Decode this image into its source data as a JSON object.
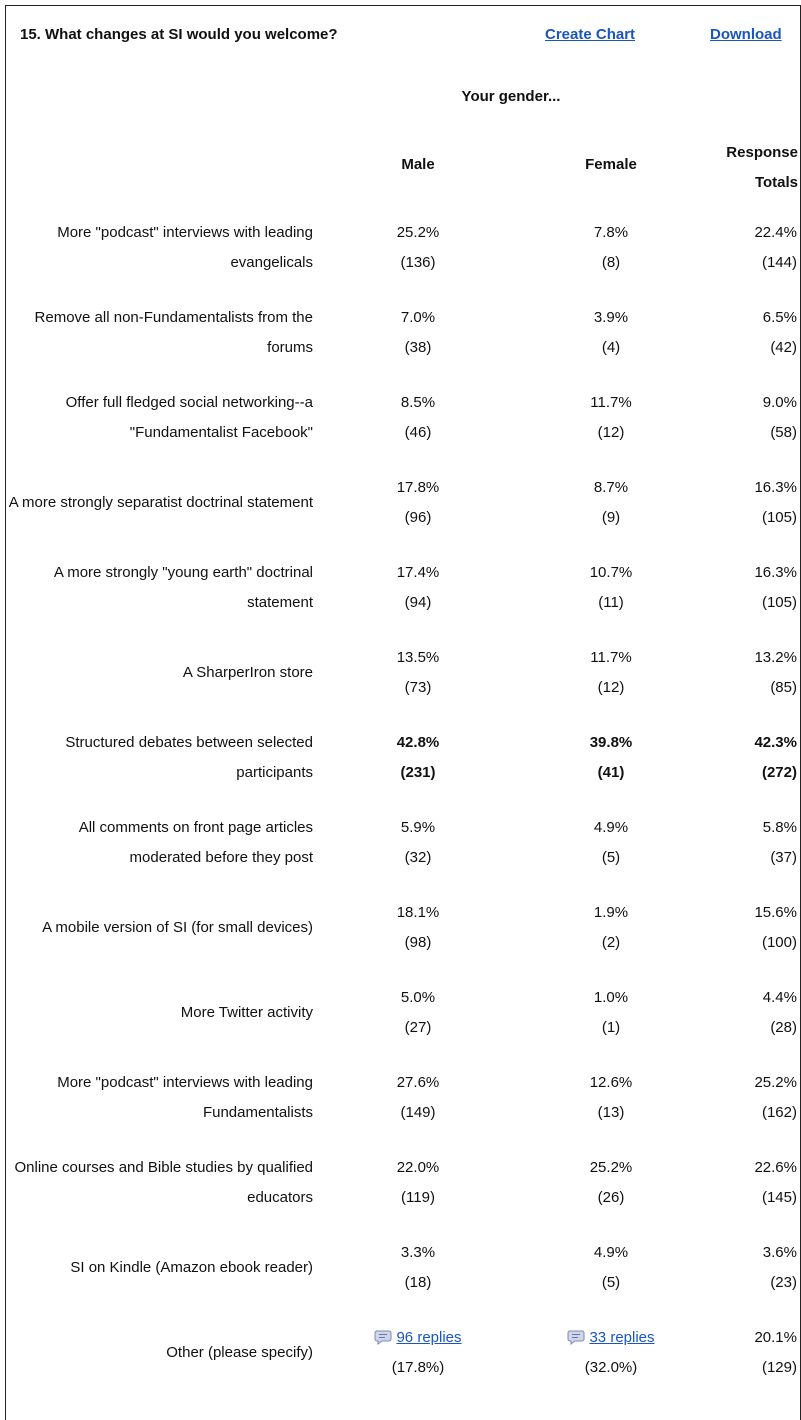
{
  "header": {
    "title": "15. What changes at SI would you welcome?",
    "links": [
      "Create Chart",
      "Download"
    ]
  },
  "table": {
    "group_header": "Your gender...",
    "columns": [
      "Male",
      "Female",
      "Response Totals"
    ],
    "rows": [
      {
        "label": "More \"podcast\" interviews with leading evangelicals",
        "cells": [
          {
            "value": "25.2%",
            "count": "(136)"
          },
          {
            "value": "7.8%",
            "count": "(8)"
          },
          {
            "value": "22.4%",
            "count": "(144)"
          }
        ]
      },
      {
        "label": "Remove all non-Fundamentalists from the forums",
        "cells": [
          {
            "value": "7.0%",
            "count": "(38)"
          },
          {
            "value": "3.9%",
            "count": "(4)"
          },
          {
            "value": "6.5%",
            "count": "(42)"
          }
        ]
      },
      {
        "label": "Offer full fledged social networking--a \"Fundamentalist Facebook\"",
        "cells": [
          {
            "value": "8.5%",
            "count": "(46)"
          },
          {
            "value": "11.7%",
            "count": "(12)"
          },
          {
            "value": "9.0%",
            "count": "(58)"
          }
        ]
      },
      {
        "label": "A more strongly separatist doctrinal statement",
        "cells": [
          {
            "value": "17.8%",
            "count": "(96)"
          },
          {
            "value": "8.7%",
            "count": "(9)"
          },
          {
            "value": "16.3%",
            "count": "(105)"
          }
        ]
      },
      {
        "label": "A more strongly \"young earth\" doctrinal statement",
        "cells": [
          {
            "value": "17.4%",
            "count": "(94)"
          },
          {
            "value": "10.7%",
            "count": "(11)"
          },
          {
            "value": "16.3%",
            "count": "(105)"
          }
        ]
      },
      {
        "label": "A SharperIron store",
        "cells": [
          {
            "value": "13.5%",
            "count": "(73)"
          },
          {
            "value": "11.7%",
            "count": "(12)"
          },
          {
            "value": "13.2%",
            "count": "(85)"
          }
        ]
      },
      {
        "label": "Structured debates between selected participants",
        "bold": true,
        "cells": [
          {
            "value": "42.8%",
            "count": "(231)"
          },
          {
            "value": "39.8%",
            "count": "(41)"
          },
          {
            "value": "42.3%",
            "count": "(272)"
          }
        ]
      },
      {
        "label": "All comments on front page articles moderated before they post",
        "cells": [
          {
            "value": "5.9%",
            "count": "(32)"
          },
          {
            "value": "4.9%",
            "count": "(5)"
          },
          {
            "value": "5.8%",
            "count": "(37)"
          }
        ]
      },
      {
        "label": "A mobile version of SI (for small devices)",
        "cells": [
          {
            "value": "18.1%",
            "count": "(98)"
          },
          {
            "value": "1.9%",
            "count": "(2)"
          },
          {
            "value": "15.6%",
            "count": "(100)"
          }
        ]
      },
      {
        "label": "More Twitter activity",
        "cells": [
          {
            "value": "5.0%",
            "count": "(27)"
          },
          {
            "value": "1.0%",
            "count": "(1)"
          },
          {
            "value": "4.4%",
            "count": "(28)"
          }
        ]
      },
      {
        "label": "More \"podcast\" interviews with leading Fundamentalists",
        "cells": [
          {
            "value": "27.6%",
            "count": "(149)"
          },
          {
            "value": "12.6%",
            "count": "(13)"
          },
          {
            "value": "25.2%",
            "count": "(162)"
          }
        ]
      },
      {
        "label": "Online courses and Bible studies by qualified educators",
        "cells": [
          {
            "value": "22.0%",
            "count": "(119)"
          },
          {
            "value": "25.2%",
            "count": "(26)"
          },
          {
            "value": "22.6%",
            "count": "(145)"
          }
        ]
      },
      {
        "label": "SI on Kindle (Amazon ebook reader)",
        "cells": [
          {
            "value": "3.3%",
            "count": "(18)"
          },
          {
            "value": "4.9%",
            "count": "(5)"
          },
          {
            "value": "3.6%",
            "count": "(23)"
          }
        ]
      },
      {
        "label": "Other (please specify)",
        "cells": [
          {
            "link": "96 replies",
            "count": "(17.8%)"
          },
          {
            "link": "33 replies",
            "count": "(32.0%)"
          },
          {
            "value": "20.1%",
            "count": "(129)"
          }
        ]
      }
    ]
  }
}
